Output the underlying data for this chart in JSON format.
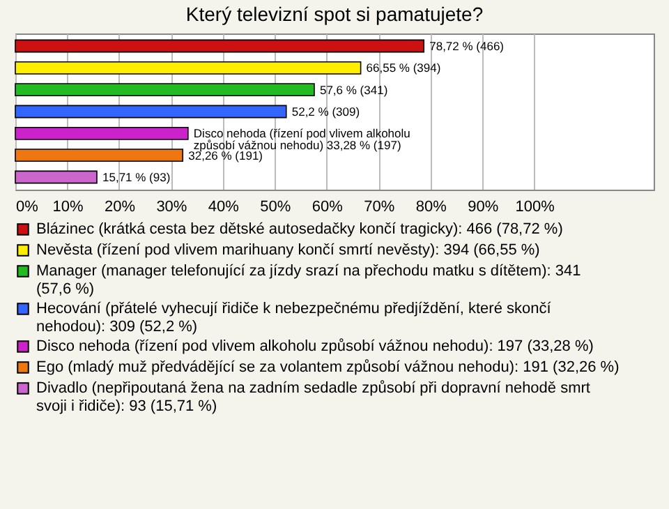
{
  "chart_data": {
    "type": "bar",
    "orientation": "horizontal",
    "title": "Který televizní spot si pamatujete?",
    "categories": [
      null,
      null,
      null,
      null,
      null,
      null,
      null
    ],
    "series": [
      {
        "name": "Blázinec (krátká cesta bez dětské autosedačky končí tragicky): 466 (78,72 %)",
        "color": "#cc1111",
        "values": [
          78.72,
          null,
          null,
          null,
          null,
          null,
          null
        ],
        "value_labels": [
          "78,72 % (466)",
          null,
          null,
          null,
          null,
          null,
          null
        ]
      },
      {
        "name": "Nevěsta (řízení pod vlivem marihuany končí smrtí nevěsty): 394 (66,55 %)",
        "color": "#ffee00",
        "values": [
          null,
          66.55,
          null,
          null,
          null,
          null,
          null
        ],
        "value_labels": [
          null,
          "66,55 % (394)",
          null,
          null,
          null,
          null,
          null
        ]
      },
      {
        "name": "Manager (manager telefonující za jízdy srazí na přechodu matku s dítětem): 341 (57,6 %)",
        "color": "#22bb22",
        "values": [
          null,
          null,
          57.6,
          null,
          null,
          null,
          null
        ],
        "value_labels": [
          null,
          null,
          "57,6 % (341)",
          null,
          null,
          null,
          null
        ]
      },
      {
        "name": "Hecování (přátelé vyhecují řidiče k nebezpečnému předjíždění, které skončí nehodou): 309 (52,2 %)",
        "color": "#3366ff",
        "values": [
          null,
          null,
          null,
          52.2,
          null,
          null,
          null
        ],
        "value_labels": [
          null,
          null,
          null,
          "52,2 % (309)",
          null,
          null,
          null
        ]
      },
      {
        "name": "Disco nehoda (řízení pod vlivem alkoholu způsobí vážnou nehodu): 197 (33,28 %)",
        "color": "#cc22cc",
        "values": [
          null,
          null,
          null,
          null,
          33.28,
          null,
          null
        ],
        "value_labels": [
          null,
          null,
          null,
          null,
          "Disco nehoda (řízení pod vlivem alkoholu způsobí vážnou nehodu) 33,28 % (197)",
          null,
          null
        ]
      },
      {
        "name": "Ego (mladý muž předvádějící se za volantem způsobí vážnou nehodu): 191 (32,26 %)",
        "color": "#ee7711",
        "values": [
          null,
          null,
          null,
          null,
          null,
          32.26,
          null
        ],
        "value_labels": [
          null,
          null,
          null,
          null,
          null,
          "32,26 % (191)",
          null
        ]
      },
      {
        "name": "Divadlo (nepřipoutaná žena na zadním sedadle způsobí při dopravní nehodě smrt svoji i řidiče): 93 (15,71 %)",
        "color": "#cc66cc",
        "values": [
          null,
          null,
          null,
          null,
          null,
          null,
          15.71
        ],
        "value_labels": [
          null,
          null,
          null,
          null,
          null,
          null,
          "15,71 % (93)"
        ]
      }
    ],
    "xlim": [
      0,
      123
    ],
    "xticks": [
      {
        "value": 0,
        "label": "0%"
      },
      {
        "value": 10,
        "label": "10%"
      },
      {
        "value": 20,
        "label": "20%"
      },
      {
        "value": 30,
        "label": "30%"
      },
      {
        "value": 40,
        "label": "40%"
      },
      {
        "value": 50,
        "label": "50%"
      },
      {
        "value": 60,
        "label": "60%"
      },
      {
        "value": 70,
        "label": "70%"
      },
      {
        "value": 80,
        "label": "80%"
      },
      {
        "value": 90,
        "label": "90%"
      },
      {
        "value": 100,
        "label": "100%"
      }
    ],
    "grid": "x",
    "legend": "bottom",
    "tick_labels": "x"
  }
}
